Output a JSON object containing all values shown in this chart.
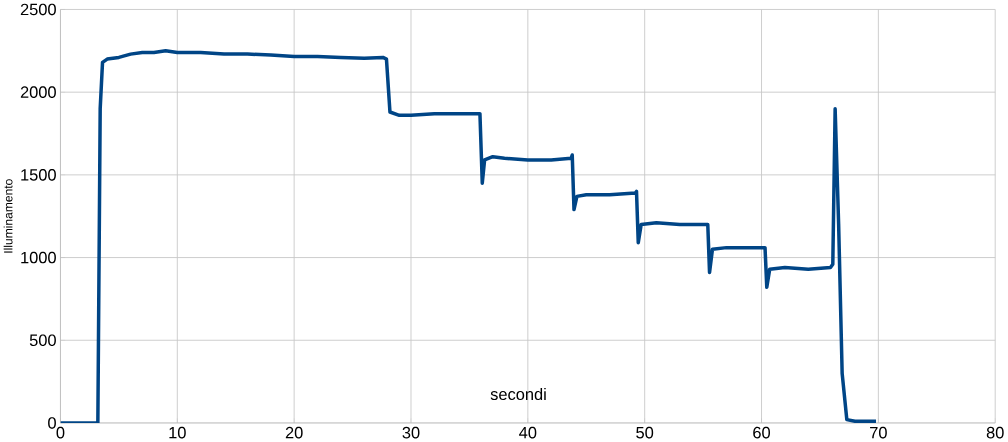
{
  "chart_data": {
    "type": "line",
    "xlabel": "secondi",
    "ylabel": "Illuminamento",
    "xlim": [
      0,
      80
    ],
    "ylim": [
      0,
      2500
    ],
    "xticks": [
      0,
      10,
      20,
      30,
      40,
      50,
      60,
      70,
      80
    ],
    "yticks": [
      0,
      500,
      1000,
      1500,
      2000,
      2500
    ],
    "grid": true,
    "marker": "none",
    "line_style": "solid",
    "series": [
      {
        "color": "#004586",
        "x": [
          0,
          3.2,
          3.4,
          3.6,
          4,
          5,
          6,
          7,
          8,
          9,
          10,
          12,
          14,
          16,
          18,
          20,
          22,
          24,
          26,
          27.6,
          27.9,
          28.2,
          29,
          30,
          32,
          34,
          35.9,
          36.1,
          36.3,
          37,
          38,
          40,
          42,
          43.7,
          43.8,
          43.95,
          44.2,
          45,
          47,
          49.2,
          49.3,
          49.45,
          49.7,
          51,
          53,
          55.3,
          55.4,
          55.55,
          55.8,
          57,
          59,
          60.2,
          60.3,
          60.45,
          60.7,
          62,
          64,
          65.9,
          66.1,
          66.3,
          66.6,
          66.9,
          67.3,
          68,
          69.8
        ],
        "values": [
          0,
          0,
          1900,
          2180,
          2200,
          2210,
          2230,
          2240,
          2240,
          2250,
          2240,
          2240,
          2230,
          2230,
          2225,
          2215,
          2215,
          2210,
          2205,
          2210,
          2200,
          1880,
          1860,
          1860,
          1870,
          1870,
          1870,
          1450,
          1590,
          1610,
          1600,
          1590,
          1590,
          1600,
          1620,
          1290,
          1370,
          1380,
          1380,
          1390,
          1400,
          1090,
          1200,
          1210,
          1200,
          1200,
          1200,
          910,
          1050,
          1060,
          1060,
          1060,
          1060,
          820,
          930,
          940,
          930,
          940,
          960,
          1900,
          1200,
          300,
          20,
          10,
          10
        ]
      }
    ]
  }
}
